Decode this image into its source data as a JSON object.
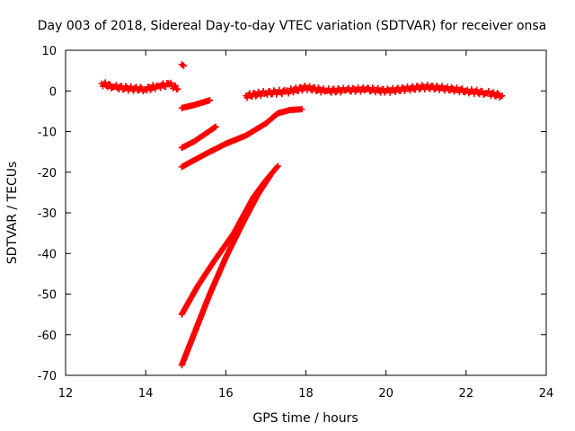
{
  "chart_data": {
    "type": "scatter",
    "title": "Day 003 of 2018, Sidereal Day-to-day VTEC variation (SDTVAR) for receiver onsa",
    "xlabel": "GPS time / hours",
    "ylabel": "SDTVAR / TECUs",
    "xlim": [
      12,
      24
    ],
    "ylim": [
      -70,
      10
    ],
    "xticks": [
      12,
      14,
      16,
      18,
      20,
      22,
      24
    ],
    "yticks": [
      10,
      0,
      -10,
      -20,
      -30,
      -40,
      -50,
      -60,
      -70
    ],
    "grid": false,
    "legend": "none",
    "marker": "plus",
    "color": "#ff0000",
    "series": [
      {
        "points": [
          [
            12.9,
            1.8
          ],
          [
            13.2,
            1.0
          ],
          [
            13.6,
            0.6
          ],
          [
            14.0,
            0.4
          ],
          [
            14.3,
            1.2
          ],
          [
            14.6,
            1.6
          ],
          [
            14.8,
            0.5
          ]
        ]
      },
      {
        "points": [
          [
            14.9,
            6.5
          ],
          [
            14.95,
            6.2
          ]
        ]
      },
      {
        "points": [
          [
            14.9,
            -4.2
          ],
          [
            15.2,
            -3.5
          ],
          [
            15.5,
            -2.6
          ],
          [
            15.6,
            -2.3
          ]
        ]
      },
      {
        "points": [
          [
            14.9,
            -14.0
          ],
          [
            15.2,
            -12.5
          ],
          [
            15.5,
            -10.5
          ],
          [
            15.75,
            -8.8
          ]
        ]
      },
      {
        "points": [
          [
            14.9,
            -18.7
          ],
          [
            15.5,
            -15.5
          ],
          [
            16.0,
            -13.0
          ],
          [
            16.5,
            -11.0
          ],
          [
            17.0,
            -8.0
          ],
          [
            17.3,
            -5.5
          ],
          [
            17.6,
            -4.7
          ],
          [
            17.9,
            -4.5
          ]
        ]
      },
      {
        "points": [
          [
            14.9,
            -55.0
          ],
          [
            15.3,
            -48.0
          ],
          [
            15.7,
            -42.0
          ],
          [
            16.2,
            -35.0
          ],
          [
            16.7,
            -26.0
          ],
          [
            17.0,
            -22.0
          ],
          [
            17.3,
            -18.5
          ]
        ]
      },
      {
        "points": [
          [
            14.9,
            -67.5
          ],
          [
            15.2,
            -60.0
          ],
          [
            15.6,
            -50.0
          ],
          [
            16.0,
            -41.0
          ],
          [
            16.4,
            -33.0
          ],
          [
            16.8,
            -25.5
          ],
          [
            17.1,
            -21.0
          ]
        ]
      },
      {
        "points": [
          [
            16.5,
            -1.2
          ],
          [
            17.0,
            -0.5
          ],
          [
            17.5,
            -0.2
          ],
          [
            18.0,
            0.8
          ],
          [
            18.5,
            0.0
          ],
          [
            19.0,
            0.2
          ],
          [
            19.5,
            0.4
          ],
          [
            20.0,
            0.0
          ],
          [
            20.5,
            0.5
          ],
          [
            21.0,
            1.0
          ],
          [
            21.5,
            0.6
          ],
          [
            22.0,
            0.0
          ],
          [
            22.5,
            -0.5
          ],
          [
            22.9,
            -1.2
          ]
        ]
      }
    ]
  }
}
